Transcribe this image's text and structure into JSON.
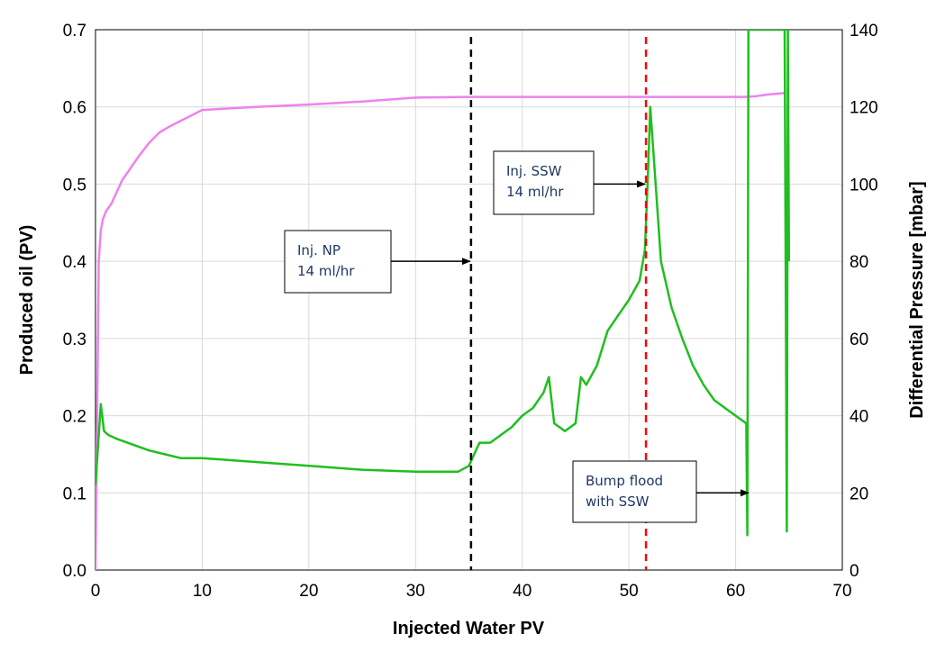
{
  "chart_data": {
    "type": "line",
    "xlabel": "Injected Water PV",
    "ylabel": "Produced oil (PV)",
    "y2label": "Differential Pressure [mbar]",
    "xlim": [
      0,
      70
    ],
    "ylim": [
      0,
      0.7
    ],
    "y2lim": [
      0,
      140
    ],
    "xticks": [
      "0",
      "10",
      "20",
      "30",
      "40",
      "50",
      "60",
      "70"
    ],
    "yticks": [
      "0.0",
      "0.1",
      "0.2",
      "0.3",
      "0.4",
      "0.5",
      "0.6",
      "0.7"
    ],
    "y2ticks": [
      "0",
      "20",
      "40",
      "60",
      "80",
      "100",
      "120",
      "140"
    ],
    "grid": true,
    "colors": {
      "oil": "#ee82ee",
      "pressure": "#1fbf1f",
      "np_line": "#000000",
      "ssw_line": "#ff0000",
      "callout_text": "#1f3864"
    },
    "series": [
      {
        "axis": "left",
        "color": "#ee82ee",
        "x": [
          0,
          0.15,
          0.3,
          0.5,
          0.7,
          1,
          1.5,
          2,
          2.5,
          3,
          3.5,
          4,
          5,
          6,
          7,
          8,
          9,
          10,
          15,
          20,
          25,
          30,
          35,
          40,
          45,
          50,
          55,
          61,
          62,
          63,
          64.7
        ],
        "y": [
          0,
          0.2,
          0.4,
          0.44,
          0.455,
          0.465,
          0.475,
          0.49,
          0.505,
          0.515,
          0.525,
          0.535,
          0.553,
          0.567,
          0.575,
          0.582,
          0.589,
          0.596,
          0.6,
          0.603,
          0.607,
          0.612,
          0.613,
          0.613,
          0.613,
          0.613,
          0.613,
          0.613,
          0.614,
          0.616,
          0.618
        ]
      },
      {
        "axis": "right",
        "color": "#1fbf1f",
        "x": [
          0,
          0.3,
          0.5,
          0.8,
          1.2,
          2,
          3,
          5,
          8,
          10,
          15,
          20,
          25,
          30,
          34,
          35,
          35.5,
          36,
          37,
          38,
          39,
          40,
          41,
          42,
          42.5,
          43,
          44,
          45,
          45.5,
          46,
          47,
          48,
          49,
          50,
          51,
          51.5,
          51.8,
          52,
          52.5,
          53,
          54,
          55,
          56,
          57,
          58,
          59,
          60,
          61,
          61.1,
          61.2,
          61.3,
          61.4,
          61.6,
          64.6,
          64.8,
          64.9,
          65
        ],
        "y": [
          22,
          35,
          43,
          36,
          35,
          34,
          33,
          31,
          29,
          29,
          28,
          27,
          26,
          25.5,
          25.5,
          27,
          30,
          33,
          33,
          35,
          37,
          40,
          42,
          46,
          50,
          38,
          36,
          38,
          50,
          48,
          53,
          62,
          66,
          70,
          75,
          83,
          104,
          120,
          100,
          80,
          68,
          60,
          53,
          48,
          44,
          42,
          40,
          38,
          9,
          140,
          140,
          140,
          140,
          140,
          10,
          140,
          80
        ]
      }
    ],
    "vlines": [
      {
        "x": 35.2,
        "color": "#000000",
        "style": "dashed"
      },
      {
        "x": 51.6,
        "color": "#ff0000",
        "style": "dashed"
      }
    ],
    "annotations": [
      {
        "lines": [
          "Inj. NP",
          "14 ml/hr"
        ],
        "target_x": 35.2,
        "target_y2": 80
      },
      {
        "lines": [
          "Inj. SSW",
          "14 ml/hr"
        ],
        "target_x": 51.6,
        "target_y2": 100
      },
      {
        "lines": [
          "Bump flood",
          "with SSW"
        ],
        "target_x": 61.3,
        "target_y2": 20
      }
    ]
  }
}
